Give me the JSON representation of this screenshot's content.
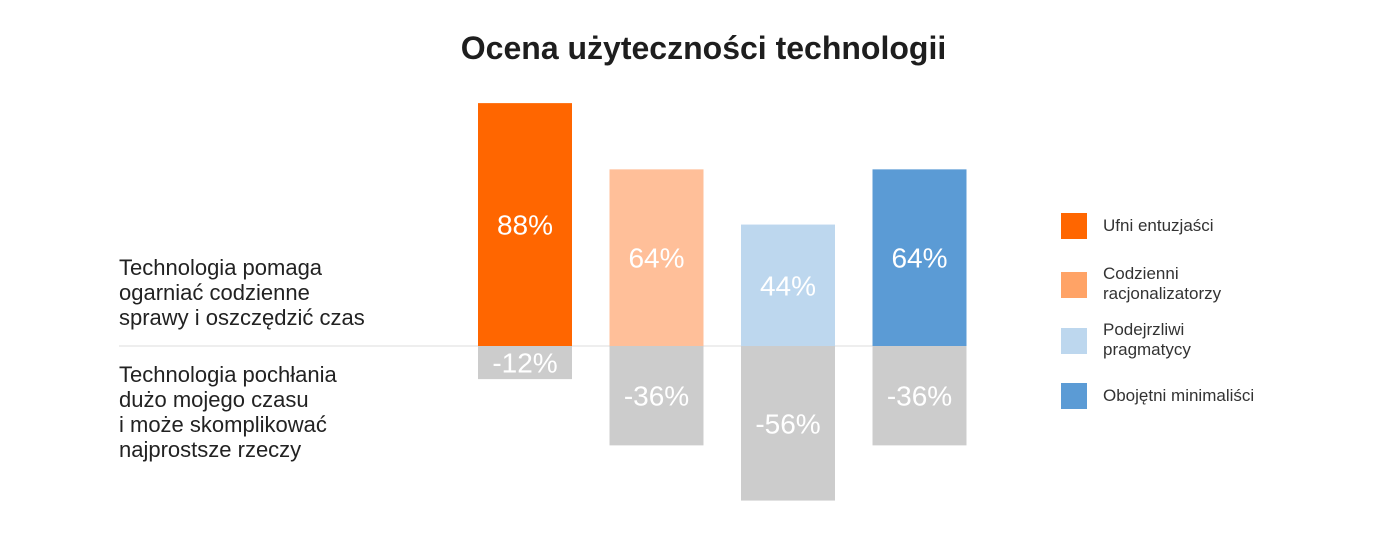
{
  "chart_data": {
    "type": "bar",
    "title": "Ocena użyteczności technologii",
    "row_labels": {
      "positive": "Technologia pomaga\nogarniać codzienne\nsprawy i oszczędzić czas",
      "negative": "Technologia pochłania\ndużo mojego czasu\ni może skomplikować\nnajprostsze rzeczy"
    },
    "categories": [
      "Ufni entuzjaści",
      "Codzienni racjonalizatorzy",
      "Podejrzliwi pragmatycy",
      "Obojętni minimaliści"
    ],
    "series": [
      {
        "key": "positive",
        "values": [
          88,
          64,
          44,
          64
        ],
        "labels": [
          "88%",
          "64%",
          "44%",
          "64%"
        ]
      },
      {
        "key": "negative",
        "values": [
          -12,
          -36,
          -56,
          -36
        ],
        "labels": [
          "-12%",
          "-36%",
          "-56%",
          "-36%"
        ]
      }
    ],
    "colors": [
      "#ff6600",
      "#ffbf99",
      "#bdd7ee",
      "#5b9bd5"
    ],
    "negative_color": "#cccccc",
    "legend": [
      {
        "label": "Ufni entuzjaści",
        "color": "#ff6600"
      },
      {
        "label": "Codzienni\nracjonalizatorzy",
        "color": "#ffa366"
      },
      {
        "label": "Podejrzliwi\npragmatycy",
        "color": "#bdd7ee"
      },
      {
        "label": "Obojętni minimaliści",
        "color": "#5b9bd5"
      }
    ],
    "legend_position": "right",
    "ylim": [
      -56,
      88
    ],
    "grid": false
  }
}
